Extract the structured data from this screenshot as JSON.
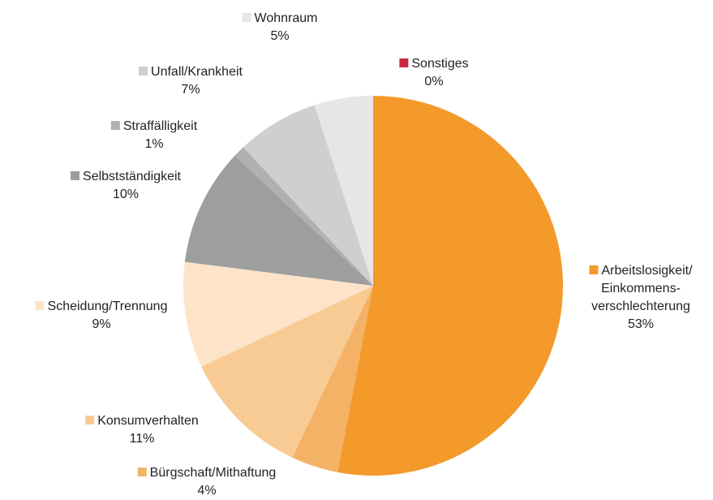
{
  "chart_data": {
    "type": "pie",
    "categories": [
      "Sonstiges",
      "Arbeitslosigkeit/\nEinkommens-\nverschlechterung",
      "Bürgschaft/Mithaftung",
      "Konsumverhalten",
      "Scheidung/Trennung",
      "Selbstständigkeit",
      "Straffälligkeit",
      "Unfall/Krankheit",
      "Wohnraum"
    ],
    "values": [
      0,
      53,
      4,
      11,
      9,
      10,
      1,
      7,
      5
    ],
    "value_labels": [
      "0%",
      "53%",
      "4%",
      "11%",
      "9%",
      "10%",
      "1%",
      "7%",
      "5%"
    ],
    "colors": [
      "#c8283c",
      "#f39a2b",
      "#f4b266",
      "#f9cb94",
      "#fde3c8",
      "#9e9e9f",
      "#b0b0b1",
      "#cfcfd0",
      "#e6e6e8"
    ]
  }
}
